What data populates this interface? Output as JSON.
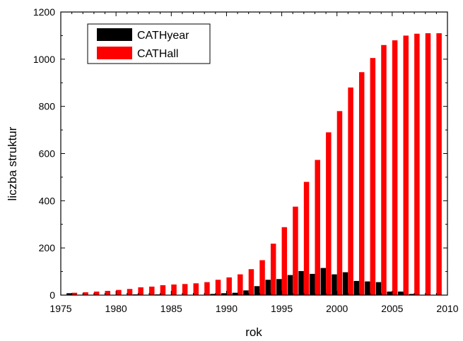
{
  "chart_data": {
    "type": "bar",
    "xlabel": "rok",
    "ylabel": "liczba struktur",
    "xlim": [
      1975,
      2010
    ],
    "ylim": [
      0,
      1200
    ],
    "x_ticks": [
      "1975",
      "1980",
      "1985",
      "1990",
      "1995",
      "2000",
      "2005",
      "2010"
    ],
    "y_ticks": [
      "0",
      "200",
      "400",
      "600",
      "800",
      "1000",
      "1200"
    ],
    "legend_position": "top-left",
    "x": [
      1976,
      1977,
      1978,
      1979,
      1980,
      1981,
      1982,
      1983,
      1984,
      1985,
      1986,
      1987,
      1988,
      1989,
      1990,
      1991,
      1992,
      1993,
      1994,
      1995,
      1996,
      1997,
      1998,
      1999,
      2000,
      2001,
      2002,
      2003,
      2004,
      2005,
      2006,
      2007,
      2008,
      2009
    ],
    "series": [
      {
        "name": "CATHyear",
        "color": "#000000",
        "values": [
          8,
          0,
          0,
          0,
          0,
          0,
          3,
          0,
          3,
          0,
          0,
          0,
          0,
          5,
          8,
          10,
          20,
          38,
          65,
          68,
          85,
          102,
          90,
          115,
          88,
          97,
          60,
          58,
          55,
          15,
          15,
          5,
          0,
          0
        ]
      },
      {
        "name": "CATHall",
        "color": "#ff0000",
        "values": [
          10,
          12,
          15,
          18,
          22,
          26,
          33,
          36,
          42,
          45,
          47,
          50,
          55,
          65,
          75,
          88,
          110,
          148,
          218,
          288,
          375,
          480,
          573,
          690,
          780,
          880,
          945,
          1005,
          1060,
          1080,
          1100,
          1108,
          1110,
          1110
        ]
      }
    ]
  }
}
